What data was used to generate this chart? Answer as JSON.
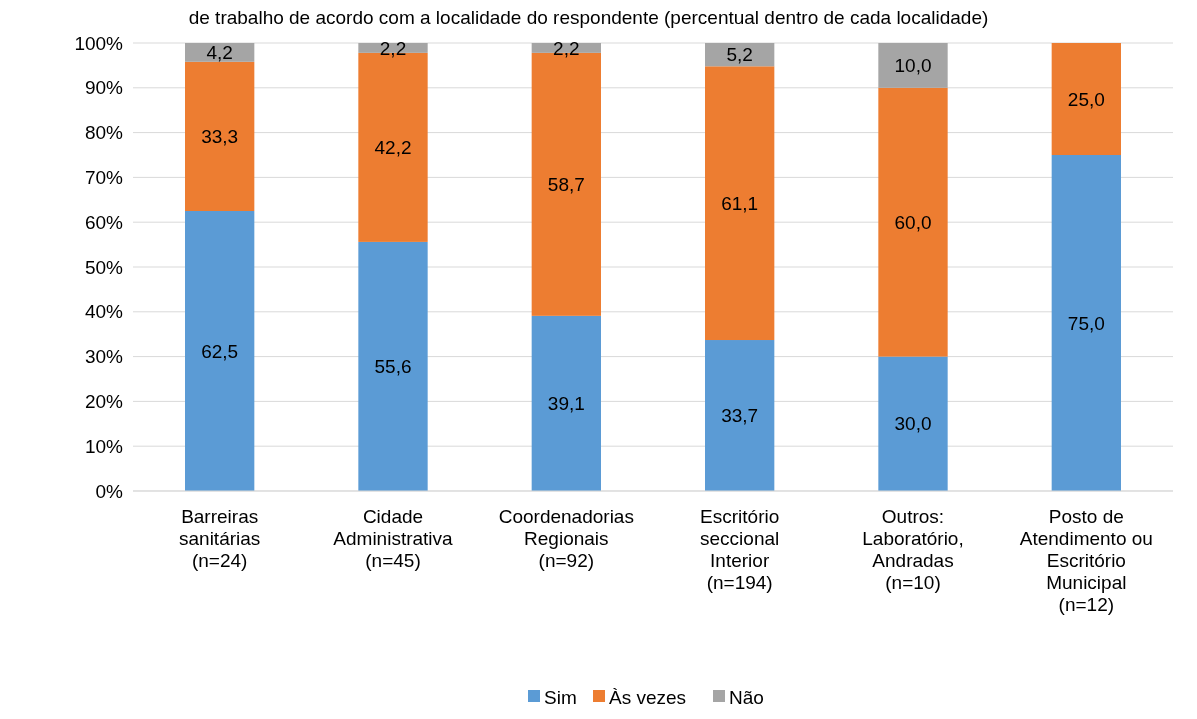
{
  "chart_data": {
    "type": "bar",
    "stacked": true,
    "title": "de trabalho de acordo com a localidade do respondente (percentual dentro de cada localidade)",
    "categories": [
      "Barreiras\nsanitárias\n(n=24)",
      "Cidade\nAdministrativa\n(n=45)",
      "Coordenadorias\nRegionais\n(n=92)",
      "Escritório\nseccional\nInterior\n(n=194)",
      "Outros:\nLaboratório,\nAndradas\n(n=10)",
      "Posto de\nAtendimento ou\nEscritório\nMunicipal\n(n=12)"
    ],
    "series": [
      {
        "name": "Sim",
        "color": "#5b9bd5",
        "values": [
          62.5,
          55.6,
          39.1,
          33.7,
          30.0,
          75.0
        ],
        "value_labels": [
          "62,5",
          "55,6",
          "39,1",
          "33,7",
          "30,0",
          "75,0"
        ]
      },
      {
        "name": "Às vezes",
        "color": "#ed7d31",
        "values": [
          33.3,
          42.2,
          58.7,
          61.1,
          60.0,
          25.0
        ],
        "value_labels": [
          "33,3",
          "42,2",
          "58,7",
          "61,1",
          "60,0",
          "25,0"
        ]
      },
      {
        "name": "Não",
        "color": "#a5a5a5",
        "values": [
          4.2,
          2.2,
          2.2,
          5.2,
          10.0,
          null
        ],
        "value_labels": [
          "4,2",
          "2,2",
          "2,2",
          "5,2",
          "10,0",
          null
        ]
      }
    ],
    "ylim": [
      0,
      100
    ],
    "yticks": [
      {
        "value": 0,
        "label": "0%"
      },
      {
        "value": 10,
        "label": "10%"
      },
      {
        "value": 20,
        "label": "20%"
      },
      {
        "value": 30,
        "label": "30%"
      },
      {
        "value": 40,
        "label": "40%"
      },
      {
        "value": 50,
        "label": "50%"
      },
      {
        "value": 60,
        "label": "60%"
      },
      {
        "value": 70,
        "label": "70%"
      },
      {
        "value": 80,
        "label": "80%"
      },
      {
        "value": 90,
        "label": "90%"
      },
      {
        "value": 100,
        "label": "100%"
      }
    ],
    "grid": "y",
    "legend": "bottom"
  }
}
